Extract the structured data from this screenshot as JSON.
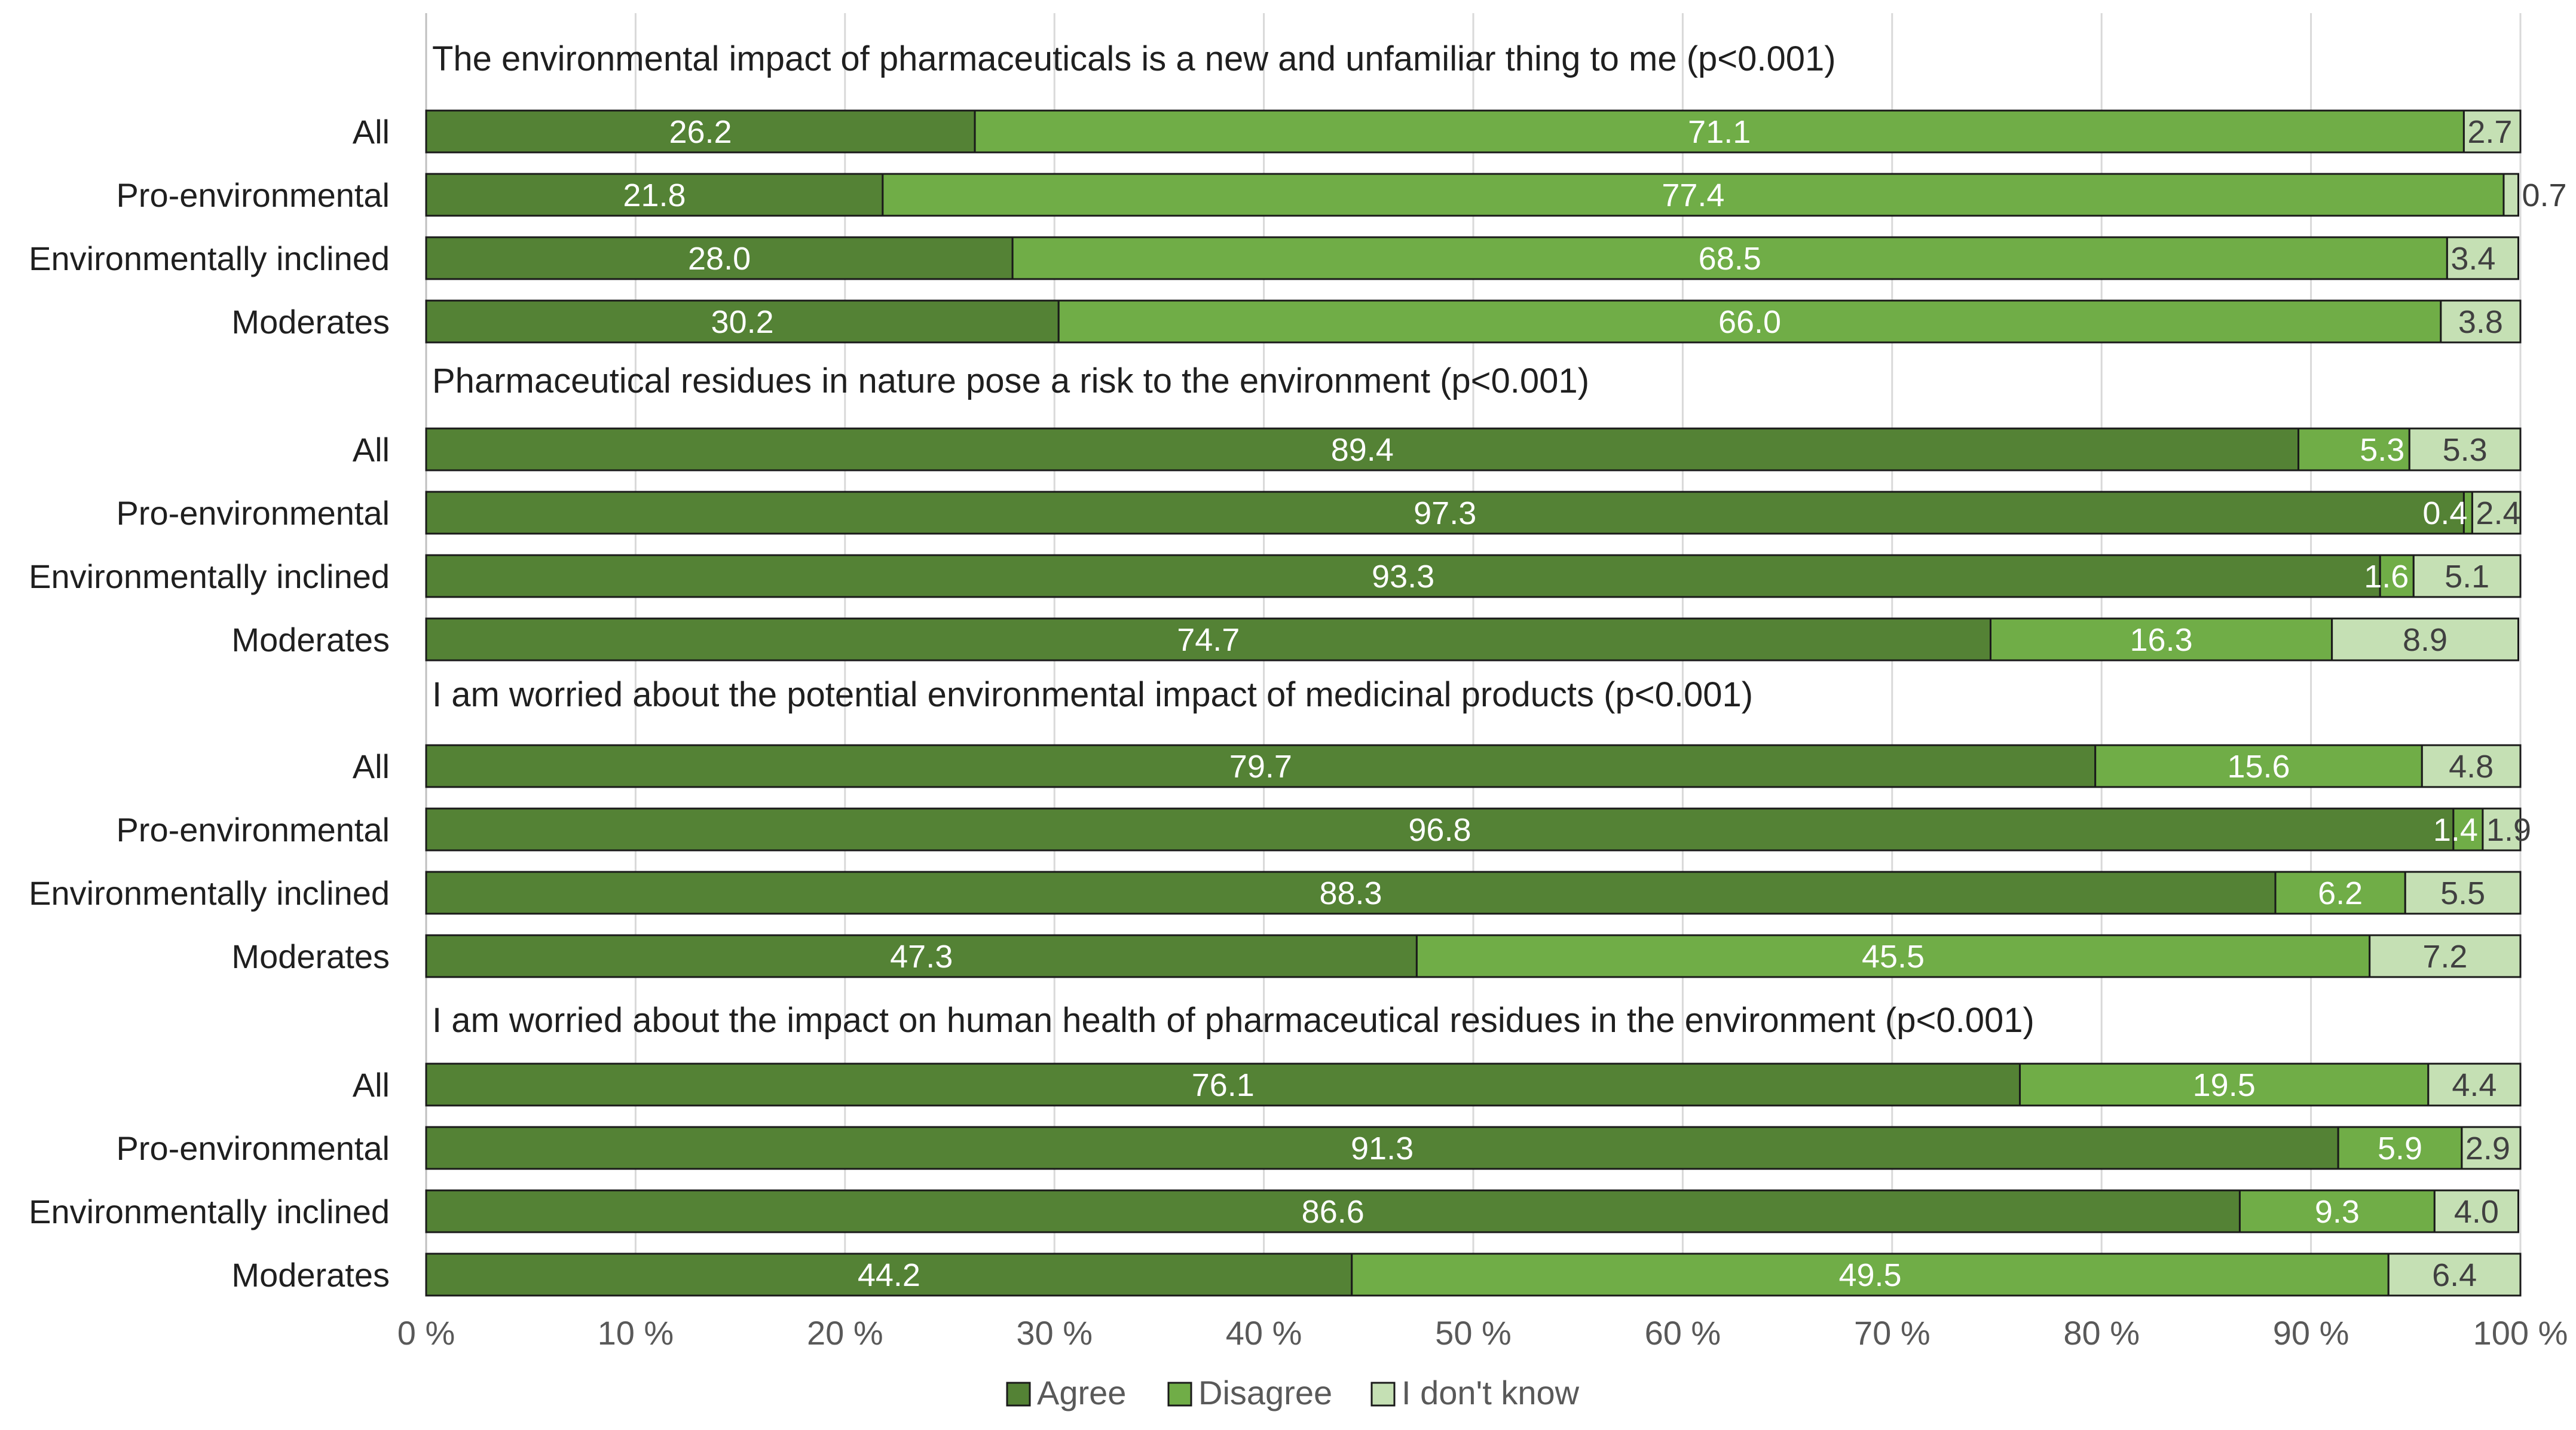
{
  "chart_data": {
    "type": "bar",
    "orientation": "horizontal",
    "stacked": true,
    "percent_stacked": true,
    "xlim": [
      0,
      100
    ],
    "x_ticks": [
      "0 %",
      "10 %",
      "20 %",
      "30 %",
      "40 %",
      "50 %",
      "60 %",
      "70 %",
      "80 %",
      "90 %",
      "100 %"
    ],
    "grid": "vertical",
    "legend_position": "bottom",
    "series": [
      {
        "name": "Agree",
        "color": "#548235"
      },
      {
        "name": "Disagree",
        "color": "#70ad47"
      },
      {
        "name": "I don't know",
        "color": "#c5e0b4"
      }
    ],
    "groups": [
      {
        "title": "The environmental impact of pharmaceuticals is a new and unfamiliar thing to me (p<0.001)",
        "rows": [
          {
            "label": "All",
            "values": [
              26.2,
              71.1,
              2.7
            ],
            "labels": [
              "26.2",
              "71.1",
              "2.7"
            ]
          },
          {
            "label": "Pro-environmental",
            "values": [
              21.8,
              77.4,
              0.7
            ],
            "labels": [
              "21.8",
              "77.4",
              "0.7"
            ]
          },
          {
            "label": "Environmentally inclined",
            "values": [
              28.0,
              68.5,
              3.4
            ],
            "labels": [
              "28.0",
              "68.5",
              "3.4"
            ]
          },
          {
            "label": "Moderates",
            "values": [
              30.2,
              66.0,
              3.8
            ],
            "labels": [
              "30.2",
              "66.0",
              "3.8"
            ]
          }
        ]
      },
      {
        "title": "Pharmaceutical residues in nature pose a risk to the environment (p<0.001)",
        "rows": [
          {
            "label": "All",
            "values": [
              89.4,
              5.3,
              5.3
            ],
            "labels": [
              "89.4",
              "5.3",
              "5.3"
            ]
          },
          {
            "label": "Pro-environmental",
            "values": [
              97.3,
              0.4,
              2.4
            ],
            "labels": [
              "97.3",
              "0.4",
              "2.4"
            ]
          },
          {
            "label": "Environmentally inclined",
            "values": [
              93.3,
              1.6,
              5.1
            ],
            "labels": [
              "93.3",
              "1.6",
              "5.1"
            ]
          },
          {
            "label": "Moderates",
            "values": [
              74.7,
              16.3,
              8.9
            ],
            "labels": [
              "74.7",
              "16.3",
              "8.9"
            ]
          }
        ]
      },
      {
        "title": "I am worried about the potential environmental impact of medicinal products (p<0.001)",
        "rows": [
          {
            "label": "All",
            "values": [
              79.7,
              15.6,
              4.8
            ],
            "labels": [
              "79.7",
              "15.6",
              "4.8"
            ]
          },
          {
            "label": "Pro-environmental",
            "values": [
              96.8,
              1.4,
              1.9
            ],
            "labels": [
              "96.8",
              "1.4",
              "1.9"
            ]
          },
          {
            "label": "Environmentally inclined",
            "values": [
              88.3,
              6.2,
              5.5
            ],
            "labels": [
              "88.3",
              "6.2",
              "5.5"
            ]
          },
          {
            "label": "Moderates",
            "values": [
              47.3,
              45.5,
              7.2
            ],
            "labels": [
              "47.3",
              "45.5",
              "7.2"
            ]
          }
        ]
      },
      {
        "title": "I am worried about the impact on human health of pharmaceutical residues in the environment (p<0.001)",
        "rows": [
          {
            "label": "All",
            "values": [
              76.1,
              19.5,
              4.4
            ],
            "labels": [
              "76.1",
              "19.5",
              "4.4"
            ]
          },
          {
            "label": "Pro-environmental",
            "values": [
              91.3,
              5.9,
              2.9
            ],
            "labels": [
              "91.3",
              "5.9",
              "2.9"
            ]
          },
          {
            "label": "Environmentally inclined",
            "values": [
              86.6,
              9.3,
              4.0
            ],
            "labels": [
              "86.6",
              "9.3",
              "4.0"
            ]
          },
          {
            "label": "Moderates",
            "values": [
              44.2,
              49.5,
              6.4
            ],
            "labels": [
              "44.2",
              "49.5",
              "6.4"
            ]
          }
        ]
      }
    ]
  }
}
